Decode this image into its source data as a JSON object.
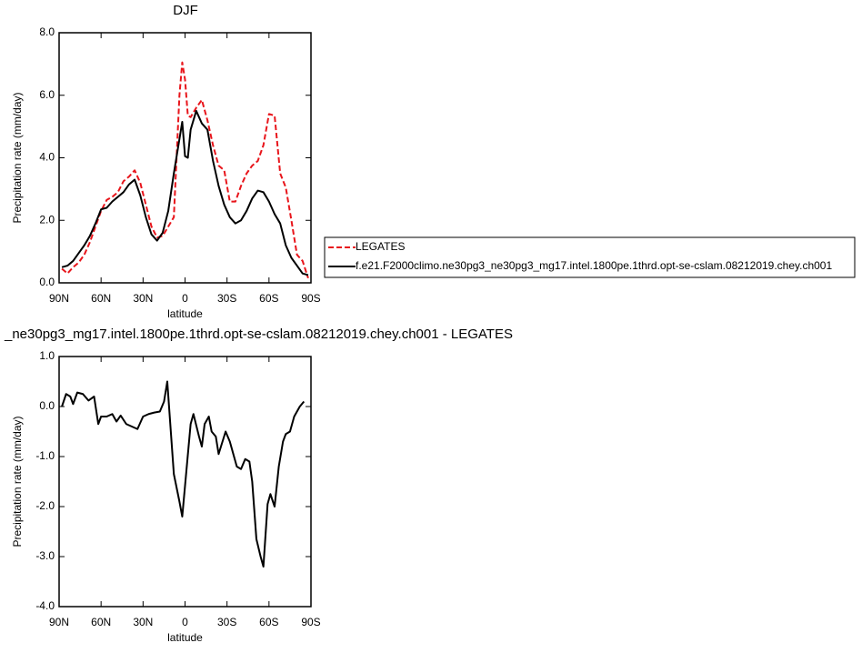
{
  "chart_data": [
    {
      "type": "line",
      "title": "DJF",
      "xlabel": "latitude",
      "ylabel": "Precipitation rate (mm/day)",
      "x": [
        88,
        84,
        80,
        76,
        72,
        68,
        64,
        60,
        56,
        52,
        48,
        44,
        40,
        36,
        32,
        28,
        24,
        20,
        16,
        12,
        8,
        4,
        2,
        0,
        -2,
        -4,
        -8,
        -12,
        -16,
        -20,
        -24,
        -28,
        -32,
        -36,
        -40,
        -44,
        -48,
        -52,
        -56,
        -60,
        -64,
        -68,
        -72,
        -76,
        -80,
        -84,
        -88
      ],
      "series": [
        {
          "name": "LEGATES",
          "color": "#e8151b",
          "linestyle": "dashed",
          "values": [
            0.45,
            0.3,
            0.5,
            0.65,
            0.9,
            1.3,
            1.8,
            2.3,
            2.65,
            2.75,
            2.9,
            3.25,
            3.4,
            3.6,
            3.2,
            2.5,
            1.8,
            1.45,
            1.5,
            1.8,
            2.1,
            6.0,
            7.05,
            6.5,
            5.35,
            5.3,
            5.6,
            5.85,
            5.2,
            4.4,
            3.75,
            3.6,
            2.6,
            2.6,
            3.1,
            3.5,
            3.75,
            3.9,
            4.4,
            5.4,
            5.35,
            3.5,
            3.05,
            2.0,
            0.9,
            0.7,
            0.15
          ]
        },
        {
          "name": "f.e21.F2000climo.ne30pg3_ne30pg3_mg17.intel.1800pe.1thrd.opt-se-cslam.08212019.chey.ch001",
          "color": "#000000",
          "linestyle": "solid",
          "values": [
            0.5,
            0.55,
            0.7,
            0.95,
            1.2,
            1.5,
            1.9,
            2.35,
            2.4,
            2.6,
            2.75,
            2.9,
            3.15,
            3.3,
            2.8,
            2.1,
            1.55,
            1.35,
            1.6,
            2.3,
            3.5,
            4.6,
            5.15,
            4.05,
            4.0,
            4.9,
            5.5,
            5.1,
            4.9,
            3.9,
            3.1,
            2.5,
            2.1,
            1.9,
            2.0,
            2.3,
            2.7,
            2.95,
            2.9,
            2.6,
            2.2,
            1.9,
            1.2,
            0.8,
            0.55,
            0.3,
            0.25
          ]
        }
      ],
      "xlim": [
        90,
        -90
      ],
      "xticks": [
        {
          "value": 90,
          "label": "90N"
        },
        {
          "value": 60,
          "label": "60N"
        },
        {
          "value": 30,
          "label": "30N"
        },
        0,
        {
          "value": -30,
          "label": "30S"
        },
        {
          "value": -60,
          "label": "60S"
        },
        {
          "value": -90,
          "label": "90S"
        }
      ],
      "ylim": [
        0,
        8
      ],
      "yticks": [
        {
          "value": 0,
          "label": "0.0"
        },
        {
          "value": 2,
          "label": "2.0"
        },
        {
          "value": 4,
          "label": "4.0"
        },
        {
          "value": 6,
          "label": "6.0"
        },
        {
          "value": 8,
          "label": "8.0"
        }
      ],
      "legend": "right"
    },
    {
      "type": "line",
      "title": "_ne30pg3_mg17.intel.1800pe.1thrd.opt-se-cslam.08212019.chey.ch001 - LEGATES",
      "xlabel": "latitude",
      "ylabel": "Precipitation rate (mm/day)",
      "x": [
        88,
        85,
        82,
        80,
        77,
        73,
        69,
        65,
        62,
        60,
        56,
        52,
        49,
        46,
        42,
        38,
        34,
        30,
        26,
        22,
        18,
        15,
        12.7,
        8,
        4,
        2,
        -4,
        -6,
        -10,
        -12,
        -14,
        -17,
        -19,
        -22,
        -24,
        -29,
        -32,
        -37,
        -40,
        -43,
        -46,
        -48,
        -51,
        -54,
        -56,
        -59,
        -61,
        -64,
        -67,
        -70,
        -72,
        -75,
        -78,
        -82,
        -85
      ],
      "values": [
        0.0,
        0.25,
        0.2,
        0.05,
        0.28,
        0.25,
        0.12,
        0.2,
        -0.35,
        -0.2,
        -0.2,
        -0.15,
        -0.3,
        -0.18,
        -0.35,
        -0.4,
        -0.45,
        -0.2,
        -0.15,
        -0.12,
        -0.1,
        0.1,
        0.5,
        -1.35,
        -1.9,
        -2.2,
        -0.35,
        -0.15,
        -0.6,
        -0.8,
        -0.35,
        -0.2,
        -0.5,
        -0.6,
        -0.95,
        -0.5,
        -0.7,
        -1.2,
        -1.25,
        -1.05,
        -1.1,
        -1.5,
        -2.65,
        -3.0,
        -3.2,
        -1.95,
        -1.75,
        -2.0,
        -1.2,
        -0.7,
        -0.55,
        -0.5,
        -0.2,
        0.0,
        0.1
      ],
      "color": "#000000",
      "xlim": [
        90,
        -90
      ],
      "xticks": [
        {
          "value": 90,
          "label": "90N"
        },
        {
          "value": 60,
          "label": "60N"
        },
        {
          "value": 30,
          "label": "30N"
        },
        0,
        {
          "value": -30,
          "label": "30S"
        },
        {
          "value": -60,
          "label": "60S"
        },
        {
          "value": -90,
          "label": "90S"
        }
      ],
      "ylim": [
        -4,
        1
      ],
      "yticks": [
        {
          "value": -4,
          "label": "-4.0"
        },
        {
          "value": -3,
          "label": "-3.0"
        },
        {
          "value": -2,
          "label": "-2.0"
        },
        {
          "value": -1,
          "label": "-1.0"
        },
        {
          "value": 0,
          "label": "0.0"
        },
        {
          "value": 1,
          "label": "1.0"
        }
      ]
    }
  ]
}
